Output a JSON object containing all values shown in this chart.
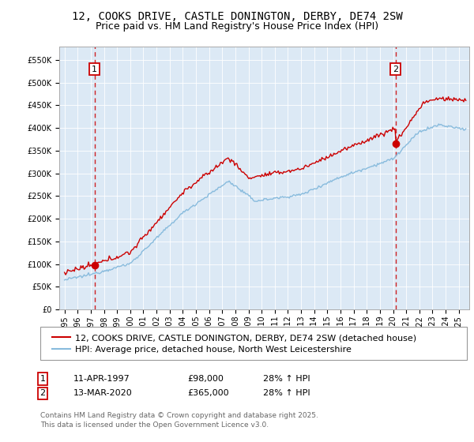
{
  "title_line1": "12, COOKS DRIVE, CASTLE DONINGTON, DERBY, DE74 2SW",
  "title_line2": "Price paid vs. HM Land Registry's House Price Index (HPI)",
  "legend_line1": "12, COOKS DRIVE, CASTLE DONINGTON, DERBY, DE74 2SW (detached house)",
  "legend_line2": "HPI: Average price, detached house, North West Leicestershire",
  "footnote": "Contains HM Land Registry data © Crown copyright and database right 2025.\nThis data is licensed under the Open Government Licence v3.0.",
  "purchase1_date": "11-APR-1997",
  "purchase1_price": 98000,
  "purchase1_hpi": "28% ↑ HPI",
  "purchase2_date": "13-MAR-2020",
  "purchase2_price": 365000,
  "purchase2_hpi": "28% ↑ HPI",
  "purchase1_year": 1997.28,
  "purchase2_year": 2020.19,
  "ylim_min": 0,
  "ylim_max": 580000,
  "yticks": [
    0,
    50000,
    100000,
    150000,
    200000,
    250000,
    300000,
    350000,
    400000,
    450000,
    500000,
    550000
  ],
  "xlim_min": 1994.6,
  "xlim_max": 2025.8,
  "plot_bg_color": "#dce9f5",
  "line1_color": "#cc0000",
  "line2_color": "#88bbdd",
  "vline_color": "#cc0000",
  "marker_color": "#cc0000",
  "box_color": "#cc0000",
  "title_fontsize": 10,
  "subtitle_fontsize": 9,
  "axis_fontsize": 7,
  "legend_fontsize": 8,
  "table_fontsize": 8,
  "footnote_fontsize": 6.5
}
